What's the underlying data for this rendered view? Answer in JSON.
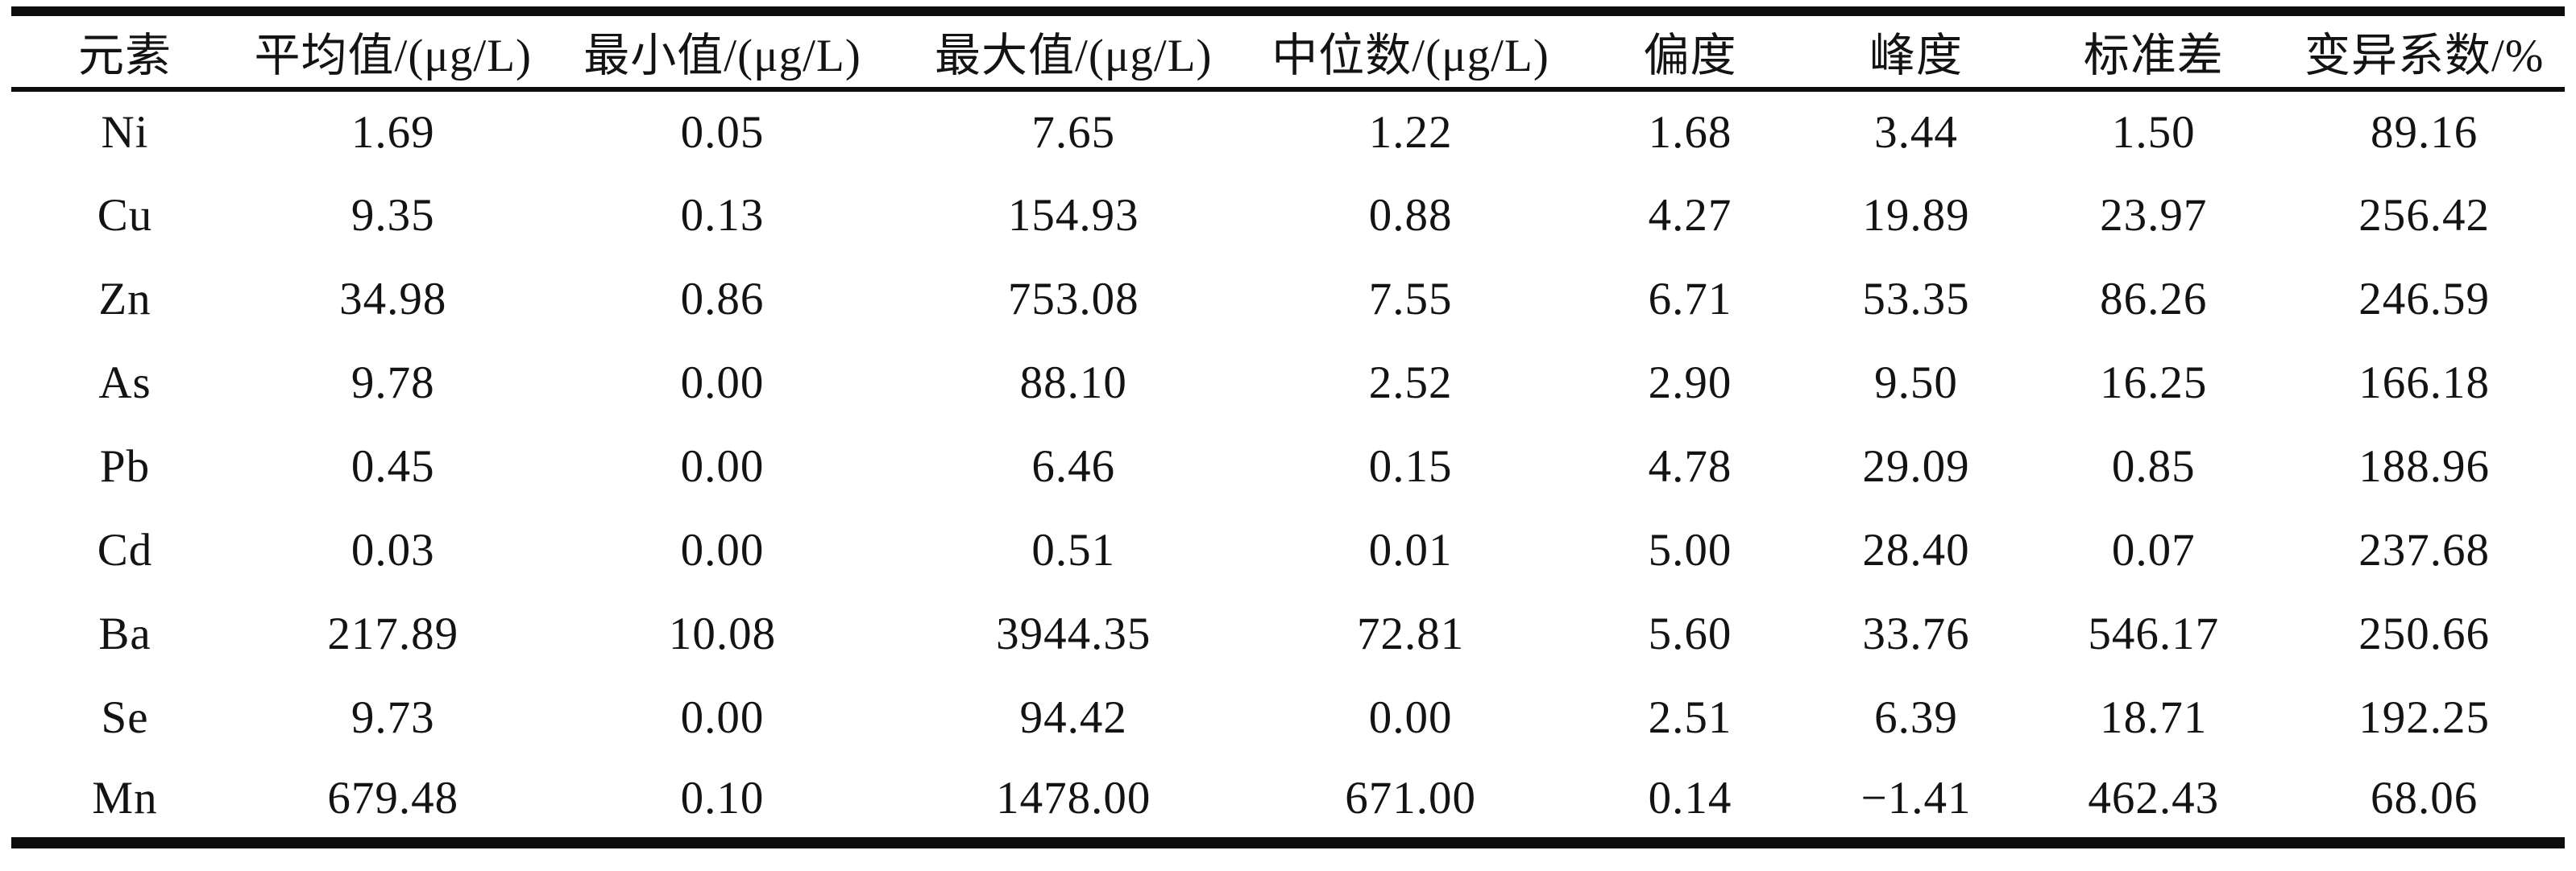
{
  "table": {
    "columns": [
      "元素",
      "平均值/(μg/L)",
      "最小值/(μg/L)",
      "最大值/(μg/L)",
      "中位数/(μg/L)",
      "偏度",
      "峰度",
      "标准差",
      "变异系数/%"
    ],
    "rows": [
      [
        "Ni",
        "1.69",
        "0.05",
        "7.65",
        "1.22",
        "1.68",
        "3.44",
        "1.50",
        "89.16"
      ],
      [
        "Cu",
        "9.35",
        "0.13",
        "154.93",
        "0.88",
        "4.27",
        "19.89",
        "23.97",
        "256.42"
      ],
      [
        "Zn",
        "34.98",
        "0.86",
        "753.08",
        "7.55",
        "6.71",
        "53.35",
        "86.26",
        "246.59"
      ],
      [
        "As",
        "9.78",
        "0.00",
        "88.10",
        "2.52",
        "2.90",
        "9.50",
        "16.25",
        "166.18"
      ],
      [
        "Pb",
        "0.45",
        "0.00",
        "6.46",
        "0.15",
        "4.78",
        "29.09",
        "0.85",
        "188.96"
      ],
      [
        "Cd",
        "0.03",
        "0.00",
        "0.51",
        "0.01",
        "5.00",
        "28.40",
        "0.07",
        "237.68"
      ],
      [
        "Ba",
        "217.89",
        "10.08",
        "3944.35",
        "72.81",
        "5.60",
        "33.76",
        "546.17",
        "250.66"
      ],
      [
        "Se",
        "9.73",
        "0.00",
        "94.42",
        "0.00",
        "2.51",
        "6.39",
        "18.71",
        "192.25"
      ],
      [
        "Mn",
        "679.48",
        "0.10",
        "1478.00",
        "671.00",
        "0.14",
        "−1.41",
        "462.43",
        "68.06"
      ]
    ],
    "text_color": "#131313",
    "rule_color": "#0d0d0d"
  }
}
